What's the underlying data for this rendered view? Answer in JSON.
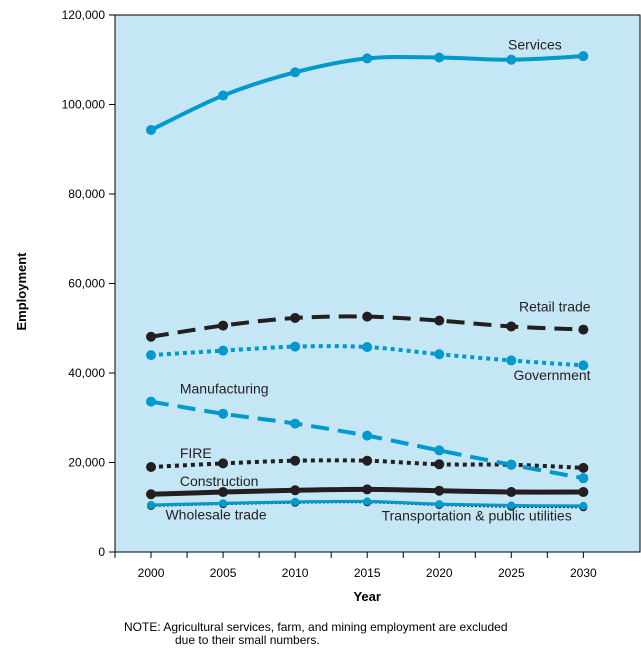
{
  "chart_data": {
    "type": "line",
    "xlabel": "Year",
    "ylabel": "Employment",
    "x": [
      2000,
      2005,
      2010,
      2015,
      2020,
      2025,
      2030
    ],
    "xticks": [
      "2000",
      "2005",
      "2010",
      "2015",
      "2020",
      "2025",
      "2030"
    ],
    "yticks": [
      "0",
      "20,000",
      "40,000",
      "60,000",
      "80,000",
      "100,000",
      "120,000"
    ],
    "ylim": [
      0,
      120000
    ],
    "xlim": [
      1997.5,
      2034
    ],
    "grid": false,
    "series": [
      {
        "name": "Services",
        "values": [
          94300,
          102000,
          107200,
          110300,
          110500,
          110000,
          110800
        ],
        "color": "#0099cc",
        "style": "solid",
        "width": 4
      },
      {
        "name": "Retail trade",
        "values": [
          48100,
          50600,
          52300,
          52600,
          51700,
          50400,
          49700
        ],
        "color": "#231f20",
        "style": "dashed",
        "width": 4
      },
      {
        "name": "Government",
        "values": [
          44000,
          45000,
          45900,
          45800,
          44200,
          42800,
          41700
        ],
        "color": "#0099cc",
        "style": "dotted",
        "width": 4
      },
      {
        "name": "Manufacturing",
        "values": [
          33600,
          30900,
          28700,
          26000,
          22700,
          19500,
          16500
        ],
        "color": "#0099cc",
        "style": "dashed",
        "width": 4
      },
      {
        "name": "FIRE",
        "values": [
          19000,
          19800,
          20400,
          20400,
          19600,
          19500,
          18800
        ],
        "color": "#231f20",
        "style": "dotted",
        "width": 4
      },
      {
        "name": "Construction",
        "values": [
          12900,
          13400,
          13800,
          14000,
          13700,
          13400,
          13400
        ],
        "color": "#231f20",
        "style": "solid",
        "width": 5
      },
      {
        "name": "Wholesale trade",
        "values": [
          10500,
          10900,
          11200,
          11300,
          10700,
          10400,
          10300
        ],
        "color": "#0099cc",
        "style": "solid",
        "width": 3
      },
      {
        "name": "Transportation & public utilities",
        "values": [
          10300,
          10700,
          11000,
          11100,
          10500,
          10100,
          10000
        ],
        "color": "#231f20",
        "style": "dotted",
        "width": 2
      }
    ],
    "labels": [
      {
        "text": "Services",
        "x": 2028.5,
        "y": 112300,
        "anchor": "end",
        "series": 0
      },
      {
        "text": "Retail trade",
        "x": 2030.5,
        "y": 53700,
        "anchor": "end",
        "series": 1
      },
      {
        "text": "Government",
        "x": 2030.5,
        "y": 38400,
        "anchor": "end",
        "series": 2
      },
      {
        "text": "Manufacturing",
        "x": 2002,
        "y": 35400,
        "anchor": "start",
        "series": 3
      },
      {
        "text": "FIRE",
        "x": 2002,
        "y": 21000,
        "anchor": "start",
        "series": 4
      },
      {
        "text": "Construction",
        "x": 2002,
        "y": 14700,
        "anchor": "start",
        "series": 5
      },
      {
        "text": "Wholesale trade",
        "x": 2001,
        "y": 7300,
        "anchor": "start",
        "series": 6
      },
      {
        "text": "Transportation & public utilities",
        "x": 2016,
        "y": 7000,
        "anchor": "start",
        "series": 7
      }
    ],
    "background": "#c4e6f5"
  },
  "note": {
    "line1": "NOTE:  Agricultural services, farm, and mining employment are excluded",
    "line2": "due to their small numbers."
  }
}
